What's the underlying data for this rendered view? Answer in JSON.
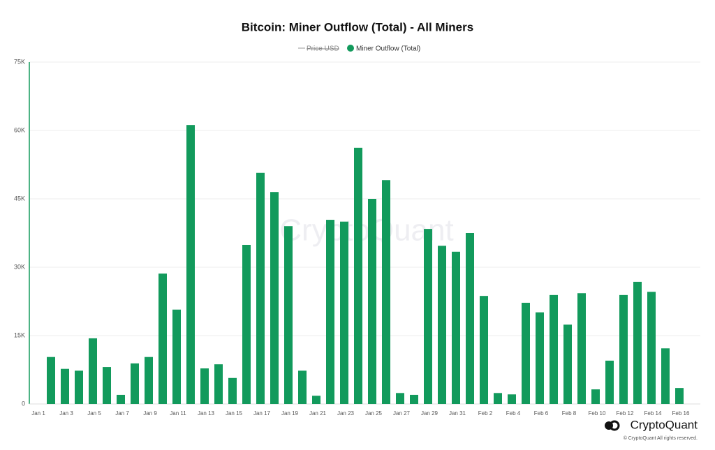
{
  "chart_data": {
    "type": "bar",
    "title": "Bitcoin: Miner Outflow (Total) - All Miners",
    "legend_hidden": "Price USD",
    "categories": [
      "Jan 1",
      null,
      "Jan 3",
      null,
      "Jan 5",
      null,
      "Jan 7",
      null,
      "Jan 9",
      null,
      "Jan 11",
      null,
      "Jan 13",
      null,
      "Jan 15",
      null,
      "Jan 17",
      null,
      "Jan 19",
      null,
      "Jan 21",
      null,
      "Jan 23",
      null,
      "Jan 25",
      null,
      "Jan 27",
      null,
      "Jan 29",
      null,
      "Jan 31",
      null,
      "Feb 2",
      null,
      "Feb 4",
      null,
      "Feb 6",
      null,
      "Feb 8",
      null,
      "Feb 10",
      null,
      "Feb 12",
      null,
      "Feb 14",
      null,
      "Feb 16"
    ],
    "series": [
      {
        "name": "Miner Outflow (Total)",
        "color": "#129a5c",
        "values": [
          null,
          10300,
          7700,
          7300,
          14400,
          8100,
          2000,
          8900,
          10300,
          28600,
          20700,
          61200,
          7800,
          8700,
          5700,
          34900,
          50700,
          46500,
          39000,
          7300,
          1800,
          40400,
          40000,
          56200,
          45000,
          49100,
          2400,
          2000,
          38400,
          34700,
          33400,
          37500,
          23700,
          2400,
          2100,
          22200,
          20100,
          23900,
          17400,
          24300,
          3200,
          9500,
          23900,
          26800,
          24600,
          12200,
          3500
        ]
      }
    ],
    "ylim": [
      0,
      75000
    ],
    "yticks": [
      0,
      {
        "value": 15000,
        "label": "15K"
      },
      {
        "value": 30000,
        "label": "30K"
      },
      {
        "value": 45000,
        "label": "45K"
      },
      {
        "value": 60000,
        "label": "60K"
      },
      {
        "value": 75000,
        "label": "75K"
      }
    ],
    "grid": true,
    "watermark": "CryptoQuant",
    "brand": "CryptoQuant",
    "copyright": "© CryptoQuant All rights reserved."
  }
}
